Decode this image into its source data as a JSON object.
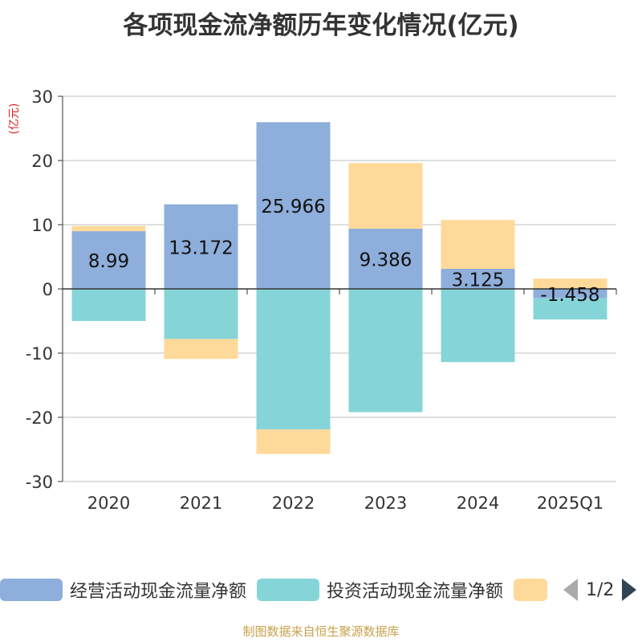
{
  "title": "各项现金流净额历年变化情况(亿元)",
  "source": "制图数据来自恒生聚源数据库",
  "pager": {
    "text": "1/2"
  },
  "chart_data": {
    "type": "bar",
    "stacked": true,
    "title": "各项现金流净额历年变化情况(亿元)",
    "ylabel": "(亿元)",
    "ylim": [
      -30,
      30
    ],
    "yticks": [
      30,
      20,
      10,
      0,
      -10,
      -20,
      -30
    ],
    "grid": true,
    "legend_position": "bottom",
    "categories": [
      "2020",
      "2021",
      "2022",
      "2023",
      "2024",
      "2025Q1"
    ],
    "series": [
      {
        "name": "经营活动现金流量净额",
        "color": "#8eaedb",
        "values": [
          8.99,
          13.172,
          25.966,
          9.386,
          3.125,
          -1.458
        ],
        "labels": [
          "8.99",
          "13.172",
          "25.966",
          "9.386",
          "3.125",
          "-1.458"
        ]
      },
      {
        "name": "投资活动现金流量净额",
        "color": "#85d5d8",
        "values": [
          -5.0,
          -7.8,
          -21.9,
          -19.2,
          -11.4,
          -3.3
        ]
      },
      {
        "name": "",
        "color": "#ffd999",
        "values": [
          0.8,
          -3.1,
          -3.8,
          10.2,
          7.6,
          1.6
        ]
      }
    ]
  }
}
